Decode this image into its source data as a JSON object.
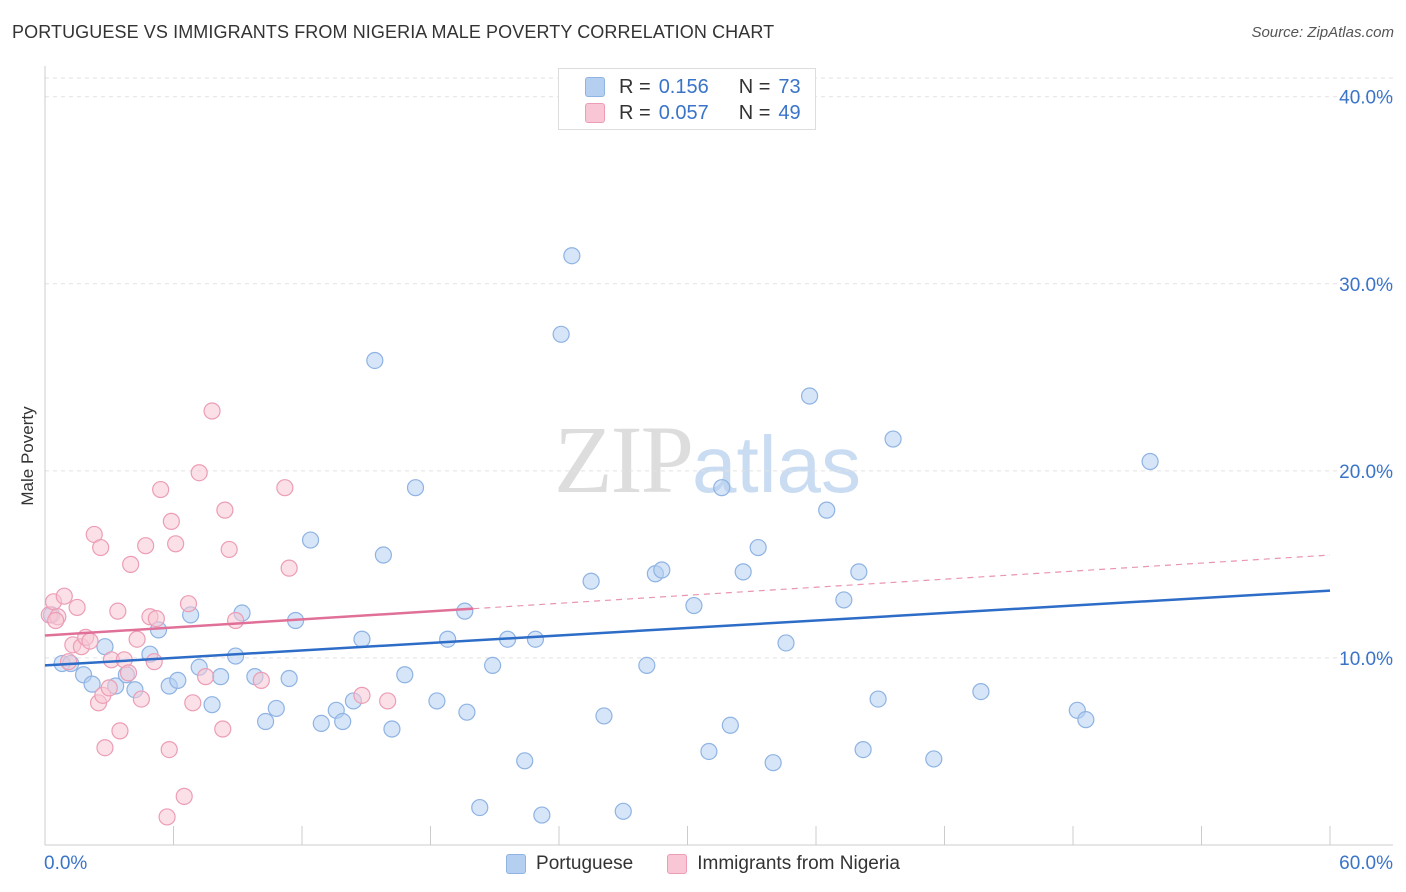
{
  "header": {
    "title": "PORTUGUESE VS IMMIGRANTS FROM NIGERIA MALE POVERTY CORRELATION CHART",
    "source": "Source: ZipAtlas.com"
  },
  "watermark": {
    "zip": "ZIP",
    "atlas": "atlas"
  },
  "legend_top": [
    {
      "r_label": "R =",
      "r_value": "0.156",
      "n_label": "N =",
      "n_value": "73"
    },
    {
      "r_label": "R =",
      "r_value": "0.057",
      "n_label": "N =",
      "n_value": "49"
    }
  ],
  "legend_bottom": [
    "Portuguese",
    "Immigrants from Nigeria"
  ],
  "colors": {
    "blue_fill": "#b4cff0",
    "blue_stroke": "#8fb3e3",
    "blue_line": "#2d6cc7",
    "pink_fill": "#f8c6d4",
    "pink_stroke": "#ec9db5",
    "pink_line": "#e07098",
    "axis_text": "#3a74c9",
    "grid": "#e2e2e2"
  },
  "chart_data": {
    "type": "scatter",
    "title": "PORTUGUESE VS IMMIGRANTS FROM NIGERIA MALE POVERTY CORRELATION CHART",
    "xlabel": "",
    "ylabel": "Male Poverty",
    "xlim": [
      0,
      60
    ],
    "ylim": [
      0,
      40
    ],
    "x_tick_labels": [
      "0.0%",
      "60.0%"
    ],
    "y_ticks": [
      10,
      20,
      30,
      40
    ],
    "y_tick_labels": [
      "10.0%",
      "20.0%",
      "30.0%",
      "40.0%"
    ],
    "series": [
      {
        "name": "Portuguese",
        "color": "#8fb3e3",
        "R": 0.156,
        "N": 73,
        "trend": {
          "x": [
            0,
            60
          ],
          "y": [
            9.6,
            13.6
          ],
          "dashed_from": null
        },
        "points": [
          [
            0.3,
            12.3
          ],
          [
            0.8,
            9.7
          ],
          [
            1.2,
            9.7
          ],
          [
            1.8,
            9.1
          ],
          [
            2.2,
            8.6
          ],
          [
            2.8,
            10.6
          ],
          [
            3.3,
            8.5
          ],
          [
            3.8,
            9.1
          ],
          [
            4.2,
            8.3
          ],
          [
            4.9,
            10.2
          ],
          [
            5.3,
            11.5
          ],
          [
            5.8,
            8.5
          ],
          [
            6.2,
            8.8
          ],
          [
            6.8,
            12.3
          ],
          [
            7.2,
            9.5
          ],
          [
            7.8,
            7.5
          ],
          [
            8.2,
            9.0
          ],
          [
            8.9,
            10.1
          ],
          [
            9.2,
            12.4
          ],
          [
            9.8,
            9.0
          ],
          [
            10.3,
            6.6
          ],
          [
            10.8,
            7.3
          ],
          [
            11.4,
            8.9
          ],
          [
            11.7,
            12.0
          ],
          [
            12.4,
            16.3
          ],
          [
            12.9,
            6.5
          ],
          [
            13.6,
            7.2
          ],
          [
            13.9,
            6.6
          ],
          [
            14.4,
            7.7
          ],
          [
            14.8,
            11.0
          ],
          [
            15.4,
            25.9
          ],
          [
            15.8,
            15.5
          ],
          [
            16.2,
            6.2
          ],
          [
            16.8,
            9.1
          ],
          [
            17.3,
            19.1
          ],
          [
            18.3,
            7.7
          ],
          [
            18.8,
            11.0
          ],
          [
            19.6,
            12.5
          ],
          [
            19.7,
            7.1
          ],
          [
            20.3,
            2.0
          ],
          [
            20.9,
            9.6
          ],
          [
            21.6,
            11.0
          ],
          [
            22.4,
            4.5
          ],
          [
            22.9,
            11.0
          ],
          [
            23.2,
            1.6
          ],
          [
            24.1,
            27.3
          ],
          [
            24.6,
            31.5
          ],
          [
            25.5,
            14.1
          ],
          [
            26.1,
            6.9
          ],
          [
            27.0,
            1.8
          ],
          [
            28.1,
            9.6
          ],
          [
            28.5,
            14.5
          ],
          [
            28.8,
            14.7
          ],
          [
            30.3,
            12.8
          ],
          [
            31.0,
            5.0
          ],
          [
            31.6,
            19.1
          ],
          [
            32.0,
            6.4
          ],
          [
            32.6,
            14.6
          ],
          [
            33.3,
            15.9
          ],
          [
            34.0,
            4.4
          ],
          [
            34.6,
            10.8
          ],
          [
            35.7,
            24.0
          ],
          [
            36.5,
            17.9
          ],
          [
            37.3,
            13.1
          ],
          [
            38.0,
            14.6
          ],
          [
            38.2,
            5.1
          ],
          [
            38.9,
            7.8
          ],
          [
            39.6,
            21.7
          ],
          [
            41.5,
            4.6
          ],
          [
            43.7,
            8.2
          ],
          [
            48.2,
            7.2
          ],
          [
            48.6,
            6.7
          ],
          [
            51.6,
            20.5
          ]
        ]
      },
      {
        "name": "Immigrants from Nigeria",
        "color": "#ec9db5",
        "R": 0.057,
        "N": 49,
        "trend": {
          "x": [
            0,
            60
          ],
          "y": [
            11.2,
            15.5
          ],
          "dashed_from": 20
        },
        "points": [
          [
            0.2,
            12.3
          ],
          [
            0.4,
            13.0
          ],
          [
            0.6,
            12.2
          ],
          [
            0.9,
            13.3
          ],
          [
            1.1,
            9.8
          ],
          [
            1.3,
            10.7
          ],
          [
            1.5,
            12.7
          ],
          [
            1.7,
            10.6
          ],
          [
            1.9,
            11.1
          ],
          [
            2.1,
            10.9
          ],
          [
            2.3,
            16.6
          ],
          [
            2.5,
            7.6
          ],
          [
            2.6,
            15.9
          ],
          [
            2.7,
            8.0
          ],
          [
            2.8,
            5.2
          ],
          [
            3.0,
            8.4
          ],
          [
            3.1,
            9.9
          ],
          [
            3.4,
            12.5
          ],
          [
            3.5,
            6.1
          ],
          [
            3.7,
            9.9
          ],
          [
            3.9,
            9.2
          ],
          [
            4.0,
            15.0
          ],
          [
            4.3,
            11.0
          ],
          [
            4.5,
            7.8
          ],
          [
            4.7,
            16.0
          ],
          [
            4.9,
            12.2
          ],
          [
            5.1,
            9.8
          ],
          [
            5.2,
            12.1
          ],
          [
            5.4,
            19.0
          ],
          [
            5.7,
            1.5
          ],
          [
            5.8,
            5.1
          ],
          [
            5.9,
            17.3
          ],
          [
            6.1,
            16.1
          ],
          [
            6.5,
            2.6
          ],
          [
            6.7,
            12.9
          ],
          [
            6.9,
            7.6
          ],
          [
            7.2,
            19.9
          ],
          [
            7.5,
            9.0
          ],
          [
            7.8,
            23.2
          ],
          [
            8.3,
            6.2
          ],
          [
            8.4,
            17.9
          ],
          [
            8.6,
            15.8
          ],
          [
            8.9,
            12.0
          ],
          [
            10.1,
            8.8
          ],
          [
            11.2,
            19.1
          ],
          [
            11.4,
            14.8
          ],
          [
            14.8,
            8.0
          ],
          [
            16.0,
            7.7
          ],
          [
            0.5,
            12.0
          ]
        ]
      }
    ]
  }
}
